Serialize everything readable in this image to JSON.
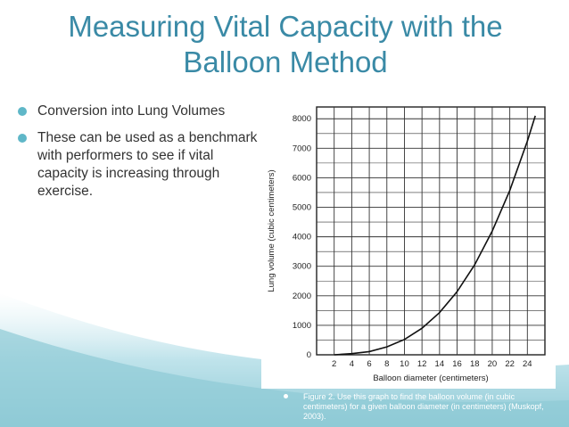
{
  "slide": {
    "title_line1": "Measuring Vital Capacity with the",
    "title_line2": "Balloon Method",
    "bullets": [
      "Conversion into Lung Volumes",
      "These can be used as a benchmark with performers to see if vital capacity is increasing through exercise."
    ],
    "caption": "Figure 2. Use this graph to find the balloon volume (in cubic centimeters) for a given balloon diameter (in centimeters) (Muskopf, 2003).",
    "colors": {
      "title": "#3a8aa6",
      "accent": "#5fb7c8",
      "wave": "#8fcad6"
    }
  },
  "chart_data": {
    "type": "line",
    "title": "",
    "xlabel": "Balloon diameter (centimeters)",
    "ylabel": "Lung volume (cubic centimeters)",
    "xlim": [
      0,
      26
    ],
    "ylim": [
      0,
      8400
    ],
    "x_ticks": [
      2,
      4,
      6,
      8,
      10,
      12,
      14,
      16,
      18,
      20,
      22,
      24
    ],
    "y_ticks": [
      0,
      1000,
      2000,
      3000,
      4000,
      5000,
      6000,
      7000,
      8000
    ],
    "grid": true,
    "series": [
      {
        "name": "Balloon volume",
        "x": [
          2,
          4,
          6,
          8,
          10,
          12,
          14,
          16,
          18,
          20,
          22,
          24,
          24.9
        ],
        "y": [
          0,
          40,
          110,
          270,
          520,
          900,
          1430,
          2140,
          3050,
          4190,
          5570,
          7240,
          8100
        ]
      }
    ]
  }
}
